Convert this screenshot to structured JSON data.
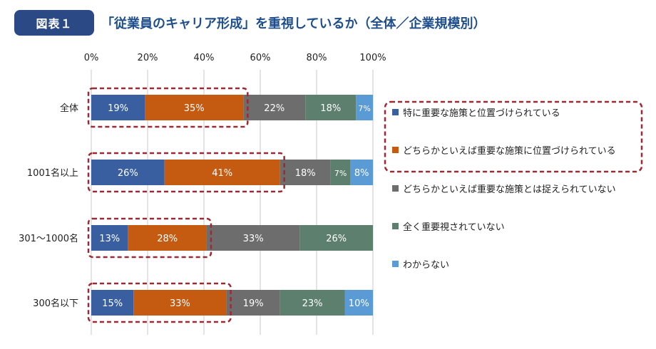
{
  "header": {
    "badge": "図表１",
    "title": "「従業員のキャリア形成」を重視しているか（全体／企業規模別）"
  },
  "chart_data": {
    "type": "bar",
    "orientation": "horizontal",
    "stacked": true,
    "categories": [
      "全体",
      "1001名以上",
      "301～1000名",
      "300名以下"
    ],
    "xlim": [
      0,
      100
    ],
    "xticks": [
      "0%",
      "20%",
      "40%",
      "60%",
      "80%",
      "100%"
    ],
    "xtick_values": [
      0,
      20,
      40,
      60,
      80,
      100
    ],
    "grid": true,
    "legend_position": "right",
    "series": [
      {
        "name": "特に重要な施策と位置づけられている",
        "color": "#3a5fa0",
        "values": [
          19,
          26,
          13,
          15
        ]
      },
      {
        "name": "どちらかといえば重要な施策に位置づけられている",
        "color": "#c55a11",
        "values": [
          35,
          41,
          28,
          33
        ]
      },
      {
        "name": "どちらかといえば重要な施策とは捉えられていない",
        "color": "#6d6d6d",
        "values": [
          22,
          18,
          33,
          19
        ]
      },
      {
        "name": "全く重要視されていない",
        "color": "#5d7f6d",
        "values": [
          18,
          7,
          26,
          23
        ]
      },
      {
        "name": "わからない",
        "color": "#5b9bd5",
        "values": [
          7,
          8,
          0,
          10
        ]
      }
    ],
    "data_labels": [
      [
        "19%",
        "35%",
        "22%",
        "18%",
        "7%"
      ],
      [
        "26%",
        "41%",
        "18%",
        "7%",
        "8%"
      ],
      [
        "13%",
        "28%",
        "33%",
        "26%",
        ""
      ],
      [
        "15%",
        "33%",
        "19%",
        "23%",
        "10%"
      ]
    ],
    "highlight_color": "#9c2a35"
  }
}
